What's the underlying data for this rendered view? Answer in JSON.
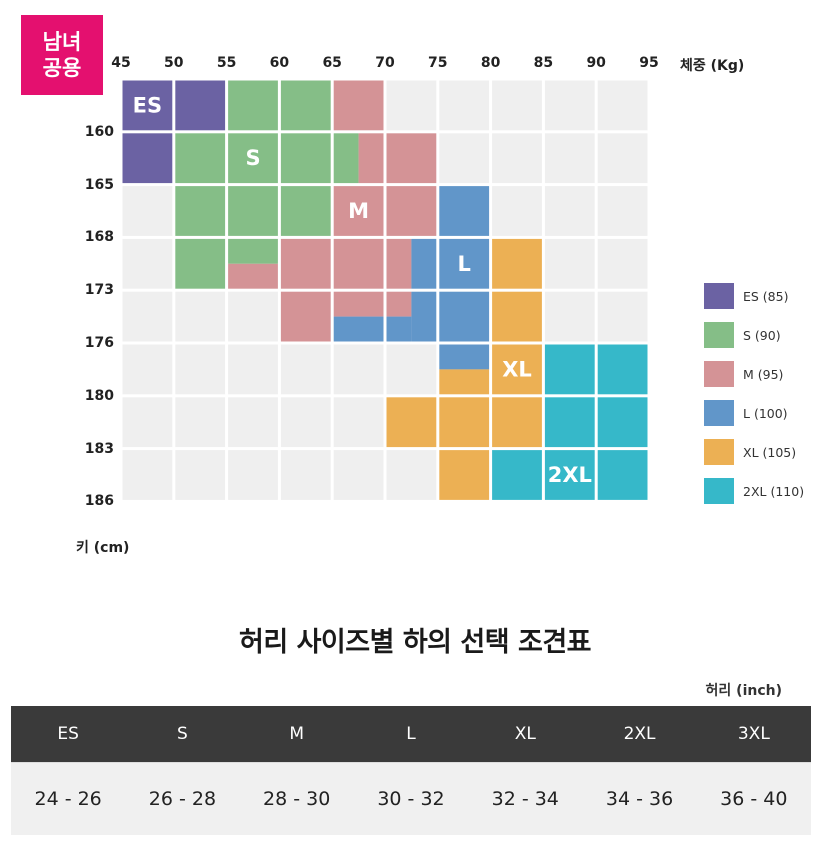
{
  "badge": {
    "line1": "남녀",
    "line2": "공용"
  },
  "chart_data": {
    "type": "heatmap",
    "xlabel": "체중 (Kg)",
    "ylabel": "키 (cm)",
    "x_ticks": [
      "45",
      "50",
      "55",
      "60",
      "65",
      "70",
      "75",
      "80",
      "85",
      "90",
      "95"
    ],
    "y_ticks": [
      "160",
      "165",
      "168",
      "173",
      "176",
      "180",
      "183",
      "186"
    ],
    "grid_background": "#efefef",
    "sizes": [
      {
        "key": "ES",
        "label": "ES",
        "legend": "ES (85)",
        "color": "#6b62a3"
      },
      {
        "key": "S",
        "label": "S",
        "legend": "S (90)",
        "color": "#85be87"
      },
      {
        "key": "M",
        "label": "M",
        "legend": "M (95)",
        "color": "#d49396"
      },
      {
        "key": "L",
        "label": "L",
        "legend": "L (100)",
        "color": "#6196c9"
      },
      {
        "key": "XL",
        "label": "XL",
        "legend": "XL (105)",
        "color": "#ecb054"
      },
      {
        "key": "2XL",
        "label": "2XL",
        "legend": "2XL (110)",
        "color": "#36b8c9"
      }
    ],
    "regions": [
      {
        "size": "ES",
        "w0": 45,
        "w1": 50,
        "r0": 0,
        "r1": 2
      },
      {
        "size": "ES",
        "w0": 50,
        "w1": 55,
        "r0": 0,
        "r1": 1
      },
      {
        "size": "S",
        "w0": 55,
        "w1": 65,
        "r0": 0,
        "r1": 1
      },
      {
        "size": "M",
        "w0": 65,
        "w1": 70,
        "r0": 0,
        "r1": 1
      },
      {
        "size": "S",
        "w0": 50,
        "w1": 67.5,
        "r0": 1,
        "r1": 2
      },
      {
        "size": "M",
        "w0": 67.5,
        "w1": 75,
        "r0": 1,
        "r1": 2
      },
      {
        "size": "S",
        "w0": 50,
        "w1": 65,
        "r0": 2,
        "r1": 3
      },
      {
        "size": "M",
        "w0": 65,
        "w1": 75,
        "r0": 2,
        "r1": 3
      },
      {
        "size": "L",
        "w0": 75,
        "w1": 80,
        "r0": 2,
        "r1": 3
      },
      {
        "size": "S",
        "w0": 50,
        "w1": 55,
        "r0": 3,
        "r1": 4
      },
      {
        "size": "S",
        "w0": 55,
        "w1": 60,
        "r0": 3,
        "r1": 3.5
      },
      {
        "size": "M",
        "w0": 55,
        "w1": 60,
        "r0": 3.5,
        "r1": 4
      },
      {
        "size": "M",
        "w0": 60,
        "w1": 72.5,
        "r0": 3,
        "r1": 4
      },
      {
        "size": "L",
        "w0": 72.5,
        "w1": 80,
        "r0": 3,
        "r1": 4
      },
      {
        "size": "XL",
        "w0": 80,
        "w1": 85,
        "r0": 3,
        "r1": 4
      },
      {
        "size": "M",
        "w0": 60,
        "w1": 65,
        "r0": 4,
        "r1": 5
      },
      {
        "size": "M",
        "w0": 65,
        "w1": 72.5,
        "r0": 4,
        "r1": 4.5
      },
      {
        "size": "L",
        "w0": 65,
        "w1": 72.5,
        "r0": 4.5,
        "r1": 5
      },
      {
        "size": "L",
        "w0": 72.5,
        "w1": 80,
        "r0": 4,
        "r1": 5
      },
      {
        "size": "XL",
        "w0": 80,
        "w1": 85,
        "r0": 4,
        "r1": 5
      },
      {
        "size": "L",
        "w0": 75,
        "w1": 80,
        "r0": 5,
        "r1": 5.5
      },
      {
        "size": "XL",
        "w0": 75,
        "w1": 80,
        "r0": 5.5,
        "r1": 6
      },
      {
        "size": "XL",
        "w0": 80,
        "w1": 85,
        "r0": 5,
        "r1": 6
      },
      {
        "size": "2XL",
        "w0": 85,
        "w1": 95,
        "r0": 5,
        "r1": 7
      },
      {
        "size": "XL",
        "w0": 70,
        "w1": 85,
        "r0": 6,
        "r1": 7
      },
      {
        "size": "XL",
        "w0": 75,
        "w1": 80,
        "r0": 7,
        "r1": 8
      },
      {
        "size": "2XL",
        "w0": 80,
        "w1": 95,
        "r0": 7,
        "r1": 8
      }
    ],
    "region_labels": [
      {
        "text": "ES",
        "w": 47.5,
        "r": 0.5
      },
      {
        "text": "S",
        "w": 57.5,
        "r": 1.5
      },
      {
        "text": "M",
        "w": 67.5,
        "r": 2.5
      },
      {
        "text": "L",
        "w": 77.5,
        "r": 3.5
      },
      {
        "text": "XL",
        "w": 82.5,
        "r": 5.5
      },
      {
        "text": "2XL",
        "w": 87.5,
        "r": 7.5
      }
    ]
  },
  "waist_table": {
    "title": "허리 사이즈별 하의 선택 조견표",
    "unit": "허리 (inch)",
    "headers": [
      "ES",
      "S",
      "M",
      "L",
      "XL",
      "2XL",
      "3XL"
    ],
    "values": [
      "24 - 26",
      "26 - 28",
      "28 - 30",
      "30 - 32",
      "32 - 34",
      "34 - 36",
      "36 - 40"
    ]
  }
}
